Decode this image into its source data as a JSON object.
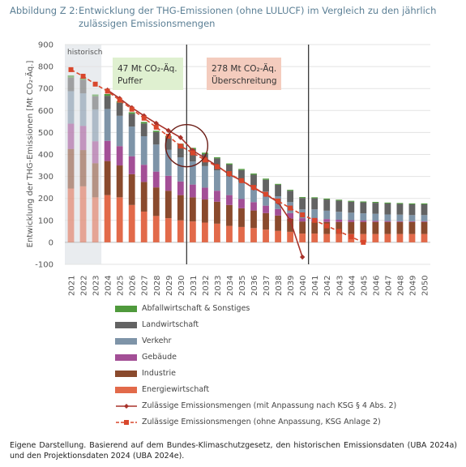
{
  "figure": {
    "number": "Abbildung Z 2:",
    "title": "Entwicklung der THG-Emissionen (ohne LULUCF) im Vergleich zu den jährlich zulässigen Emissionsmengen"
  },
  "chart_data": {
    "type": "bar",
    "stacked": true,
    "ylabel": "Entwicklung der THG-Emissionen [Mt CO₂-Äq.]",
    "ylim": [
      -100,
      900
    ],
    "yticks": [
      -100,
      0,
      100,
      200,
      300,
      400,
      500,
      600,
      700,
      800,
      900
    ],
    "categories": [
      "2021",
      "2022",
      "2023",
      "2024",
      "2025",
      "2026",
      "2027",
      "2028",
      "2029",
      "2030",
      "2031",
      "2032",
      "2033",
      "2034",
      "2035",
      "2036",
      "2037",
      "2038",
      "2039",
      "2040",
      "2041",
      "2042",
      "2043",
      "2044",
      "2045",
      "2046",
      "2047",
      "2048",
      "2049",
      "2050"
    ],
    "historical_years": [
      "2021",
      "2022",
      "2023"
    ],
    "series": [
      {
        "name": "Energiewirtschaft",
        "color": "#e26a4a",
        "values": [
          245,
          255,
          205,
          215,
          205,
          170,
          140,
          120,
          110,
          100,
          95,
          90,
          85,
          75,
          70,
          65,
          58,
          52,
          48,
          40,
          40,
          38,
          38,
          38,
          38,
          38,
          38,
          38,
          38,
          38
        ]
      },
      {
        "name": "Industrie",
        "color": "#8a4a2d",
        "values": [
          180,
          165,
          155,
          155,
          145,
          140,
          135,
          130,
          125,
          115,
          110,
          105,
          100,
          95,
          85,
          80,
          75,
          70,
          60,
          55,
          55,
          55,
          55,
          55,
          55,
          55,
          55,
          55,
          55,
          55
        ]
      },
      {
        "name": "Gebäude",
        "color": "#a34f96",
        "values": [
          115,
          110,
          100,
          92,
          88,
          82,
          78,
          72,
          68,
          62,
          58,
          54,
          50,
          45,
          42,
          38,
          34,
          30,
          25,
          15,
          15,
          13,
          10,
          8,
          6,
          5,
          4,
          3,
          3,
          3
        ]
      },
      {
        "name": "Verkehr",
        "color": "#7e94a8",
        "values": [
          148,
          148,
          145,
          145,
          138,
          135,
          130,
          123,
          118,
          110,
          105,
          98,
          92,
          85,
          78,
          72,
          65,
          58,
          50,
          40,
          40,
          38,
          36,
          34,
          33,
          32,
          30,
          30,
          28,
          28
        ]
      },
      {
        "name": "Landwirtschaft",
        "color": "#636363",
        "values": [
          62,
          62,
          60,
          60,
          59,
          58,
          58,
          57,
          57,
          56,
          56,
          55,
          55,
          54,
          54,
          53,
          53,
          52,
          52,
          52,
          51,
          51,
          51,
          50,
          50,
          50,
          50,
          49,
          49,
          49
        ]
      },
      {
        "name": "Abfallwirtschaft & Sonstiges",
        "color": "#4f9a3c",
        "values": [
          10,
          9,
          8,
          8,
          7,
          7,
          7,
          6,
          6,
          6,
          6,
          6,
          5,
          5,
          5,
          5,
          5,
          4,
          4,
          4,
          4,
          4,
          4,
          4,
          4,
          4,
          4,
          4,
          4,
          4
        ]
      }
    ],
    "lines": [
      {
        "name": "Zulässige Emissionsmengen (mit Anpassung nach KSG § 4 Abs. 2)",
        "color": "#a8322a",
        "style": "solid",
        "marker": "diamond",
        "x": [
          "2024",
          "2025",
          "2026",
          "2027",
          "2028",
          "2029",
          "2030",
          "2031",
          "2032",
          "2033",
          "2034",
          "2035",
          "2036",
          "2037",
          "2038",
          "2039",
          "2040"
        ],
        "values": [
          693,
          655,
          613,
          576,
          542,
          509,
          477,
          418,
          383,
          348,
          309,
          281,
          247,
          218,
          183,
          100,
          -67
        ]
      },
      {
        "name": "Zulässige Emissionsmengen (ohne Anpassung, KSG Anlage 2)",
        "color": "#d8472c",
        "style": "dashed",
        "marker": "square",
        "x": [
          "2021",
          "2022",
          "2023",
          "2024",
          "2025",
          "2026",
          "2027",
          "2028",
          "2029",
          "2030",
          "2031",
          "2032",
          "2033",
          "2034",
          "2035",
          "2036",
          "2037",
          "2038",
          "2039",
          "2040",
          "2041",
          "2042",
          "2043",
          "2044",
          "2045"
        ],
        "values": [
          786,
          756,
          720,
          688,
          647,
          606,
          565,
          524,
          483,
          438,
          407,
          375,
          344,
          313,
          281,
          250,
          219,
          188,
          156,
          125,
          100,
          75,
          50,
          25,
          0
        ]
      }
    ],
    "annotations": [
      {
        "text1": "47 Mt CO₂-Äq.",
        "text2": "Puffer",
        "color": "#dff0d0"
      },
      {
        "text1": "278 Mt CO₂-Äq.",
        "text2": "Überschreitung",
        "color": "#f4ccbe"
      }
    ],
    "region_label": "historisch",
    "dividers_at_year_boundaries": [
      "2030/2031",
      "2040/2041"
    ]
  },
  "legend_order": [
    "Abfallwirtschaft & Sonstiges",
    "Landwirtschaft",
    "Verkehr",
    "Gebäude",
    "Industrie",
    "Energiewirtschaft"
  ],
  "source_note": "Eigene Darstellung. Basierend auf dem Bundes-Klimaschutzgesetz, den historischen Emissionsdaten (UBA 2024a) und den Projektionsdaten 2024 (UBA 2024e)."
}
